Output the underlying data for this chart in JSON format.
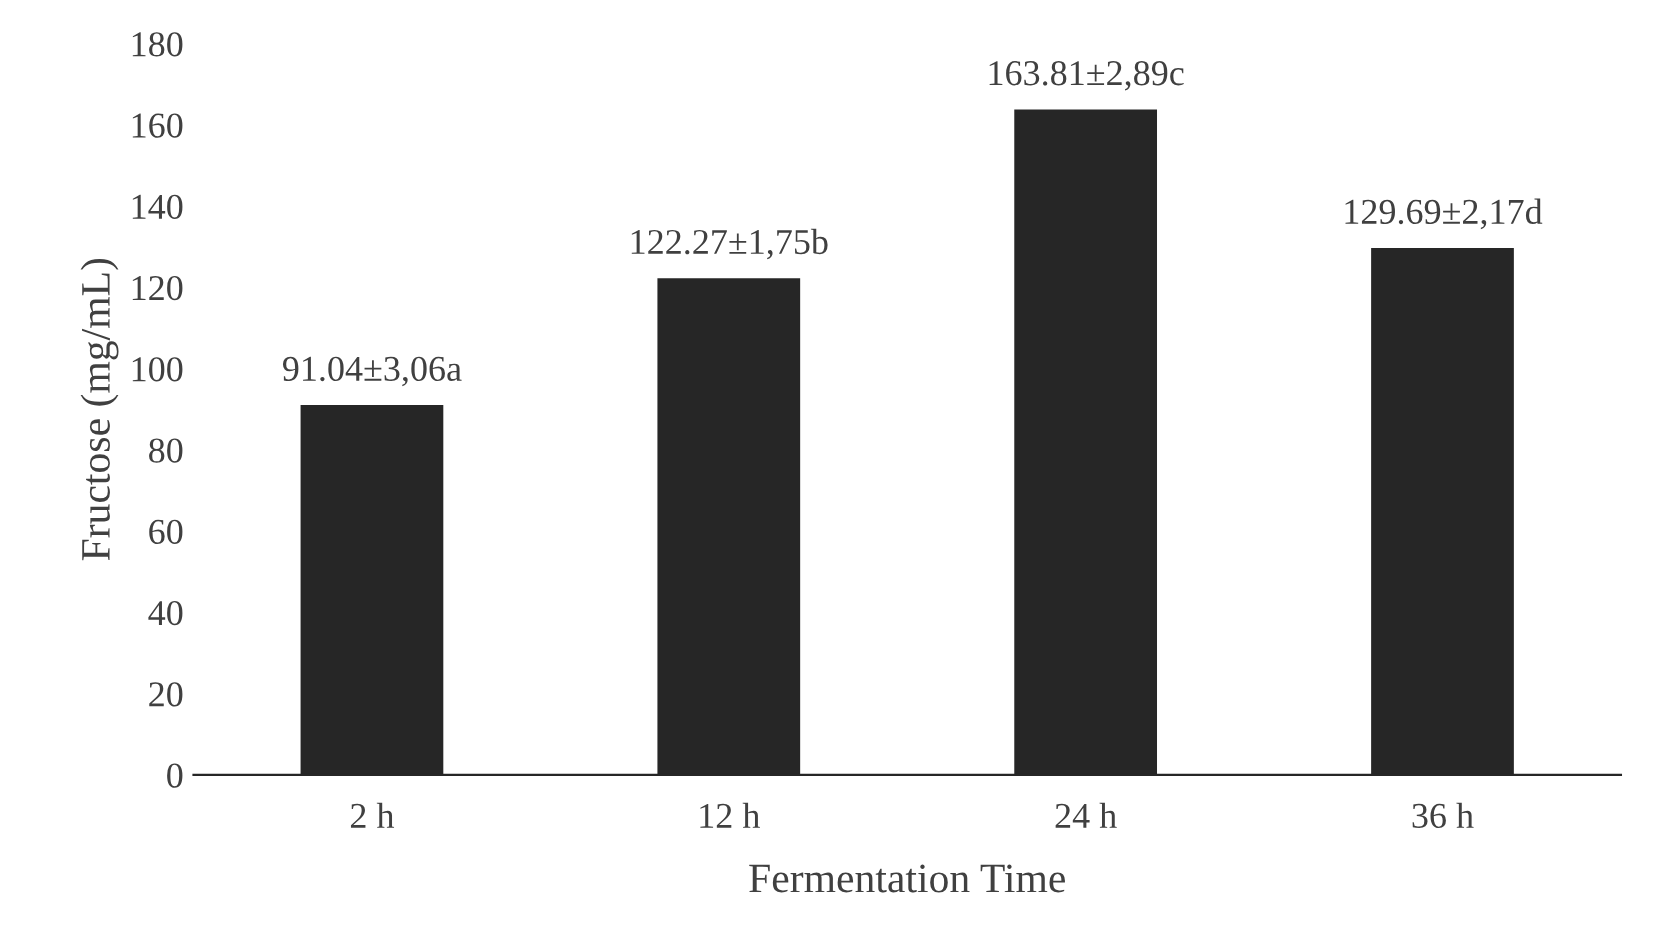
{
  "chart_data": {
    "type": "bar",
    "xlabel": "Fermentation Time",
    "ylabel": "Fructose (mg/mL)",
    "categories": [
      "2 h",
      "12 h",
      "24 h",
      "36 h"
    ],
    "values": [
      91.04,
      122.27,
      163.81,
      129.69
    ],
    "value_labels": [
      "91.04±3,06a",
      "122.27±1,75b",
      "163.81±2,89c",
      "129.69±2,17d"
    ],
    "color": "#262626",
    "ylim": [
      0,
      180
    ],
    "yticks": [
      0,
      20,
      40,
      60,
      80,
      100,
      120,
      140,
      160,
      180
    ],
    "grid": false,
    "legend": false
  }
}
